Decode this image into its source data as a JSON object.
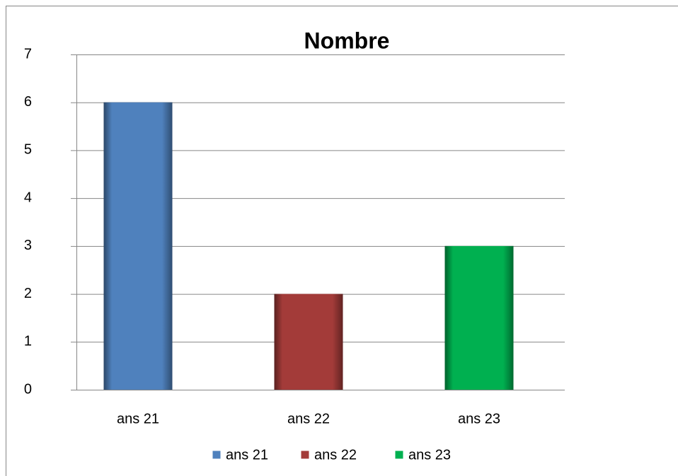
{
  "chart_data": {
    "type": "bar",
    "title": "Nombre",
    "categories": [
      "ans 21",
      "ans 22",
      "ans 23"
    ],
    "values": [
      6,
      2,
      3
    ],
    "colors": [
      "#4f81bd",
      "#a33b39",
      "#00b050"
    ],
    "ylim": [
      0,
      7
    ],
    "yticks": [
      0,
      1,
      2,
      3,
      4,
      5,
      6,
      7
    ],
    "grid": true,
    "legend": "bottom"
  }
}
